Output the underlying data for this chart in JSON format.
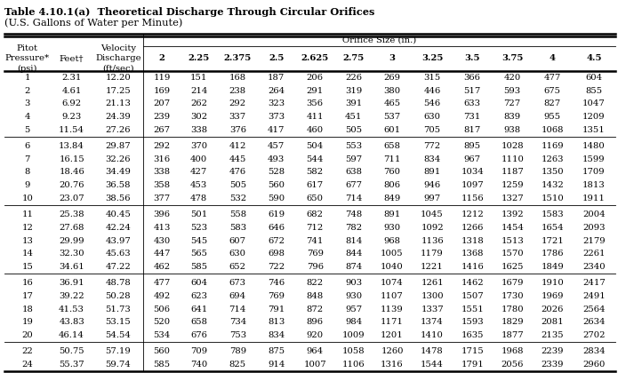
{
  "title_line1": "Table 4.10.1(a)  Theoretical Discharge Through Circular Orifices",
  "title_line2": "(U.S. Gallons of Water per Minute)",
  "orifice_sizes": [
    "2",
    "2.25",
    "2.375",
    "2.5",
    "2.625",
    "2.75",
    "3",
    "3.25",
    "3.5",
    "3.75",
    "4",
    "4.5"
  ],
  "rows": [
    [
      1,
      2.31,
      12.2,
      119,
      151,
      168,
      187,
      206,
      226,
      269,
      315,
      366,
      420,
      477,
      604
    ],
    [
      2,
      4.61,
      17.25,
      169,
      214,
      238,
      264,
      291,
      319,
      380,
      446,
      517,
      593,
      675,
      855
    ],
    [
      3,
      6.92,
      21.13,
      207,
      262,
      292,
      323,
      356,
      391,
      465,
      546,
      633,
      727,
      827,
      1047
    ],
    [
      4,
      9.23,
      24.39,
      239,
      302,
      337,
      373,
      411,
      451,
      537,
      630,
      731,
      839,
      955,
      1209
    ],
    [
      5,
      11.54,
      27.26,
      267,
      338,
      376,
      417,
      460,
      505,
      601,
      705,
      817,
      938,
      1068,
      1351
    ],
    [
      6,
      13.84,
      29.87,
      292,
      370,
      412,
      457,
      504,
      553,
      658,
      772,
      895,
      1028,
      1169,
      1480
    ],
    [
      7,
      16.15,
      32.26,
      316,
      400,
      445,
      493,
      544,
      597,
      711,
      834,
      967,
      1110,
      1263,
      1599
    ],
    [
      8,
      18.46,
      34.49,
      338,
      427,
      476,
      528,
      582,
      638,
      760,
      891,
      1034,
      1187,
      1350,
      1709
    ],
    [
      9,
      20.76,
      36.58,
      358,
      453,
      505,
      560,
      617,
      677,
      806,
      946,
      1097,
      1259,
      1432,
      1813
    ],
    [
      10,
      23.07,
      38.56,
      377,
      478,
      532,
      590,
      650,
      714,
      849,
      997,
      1156,
      1327,
      1510,
      1911
    ],
    [
      11,
      25.38,
      40.45,
      396,
      501,
      558,
      619,
      682,
      748,
      891,
      1045,
      1212,
      1392,
      1583,
      2004
    ],
    [
      12,
      27.68,
      42.24,
      413,
      523,
      583,
      646,
      712,
      782,
      930,
      1092,
      1266,
      1454,
      1654,
      2093
    ],
    [
      13,
      29.99,
      43.97,
      430,
      545,
      607,
      672,
      741,
      814,
      968,
      1136,
      1318,
      1513,
      1721,
      2179
    ],
    [
      14,
      32.3,
      45.63,
      447,
      565,
      630,
      698,
      769,
      844,
      1005,
      1179,
      1368,
      1570,
      1786,
      2261
    ],
    [
      15,
      34.61,
      47.22,
      462,
      585,
      652,
      722,
      796,
      874,
      1040,
      1221,
      1416,
      1625,
      1849,
      2340
    ],
    [
      16,
      36.91,
      48.78,
      477,
      604,
      673,
      746,
      822,
      903,
      1074,
      1261,
      1462,
      1679,
      1910,
      2417
    ],
    [
      17,
      39.22,
      50.28,
      492,
      623,
      694,
      769,
      848,
      930,
      1107,
      1300,
      1507,
      1730,
      1969,
      2491
    ],
    [
      18,
      41.53,
      51.73,
      506,
      641,
      714,
      791,
      872,
      957,
      1139,
      1337,
      1551,
      1780,
      2026,
      2564
    ],
    [
      19,
      43.83,
      53.15,
      520,
      658,
      734,
      813,
      896,
      984,
      1171,
      1374,
      1593,
      1829,
      2081,
      2634
    ],
    [
      20,
      46.14,
      54.54,
      534,
      676,
      753,
      834,
      920,
      1009,
      1201,
      1410,
      1635,
      1877,
      2135,
      2702
    ],
    [
      22,
      50.75,
      57.19,
      560,
      709,
      789,
      875,
      964,
      1058,
      1260,
      1478,
      1715,
      1968,
      2239,
      2834
    ],
    [
      24,
      55.37,
      59.74,
      585,
      740,
      825,
      914,
      1007,
      1106,
      1316,
      1544,
      1791,
      2056,
      2339,
      2960
    ]
  ],
  "group_breaks": [
    5,
    10,
    15,
    20
  ],
  "bg_color": "#ffffff",
  "col_widths_rel": [
    3.2,
    3.0,
    3.5,
    2.6,
    2.6,
    2.8,
    2.6,
    2.8,
    2.6,
    2.8,
    2.8,
    2.8,
    2.8,
    2.8,
    3.0
  ],
  "title1_fontsize": 8.2,
  "title2_fontsize": 8.2,
  "header_fontsize": 7.2,
  "data_fontsize": 7.2
}
